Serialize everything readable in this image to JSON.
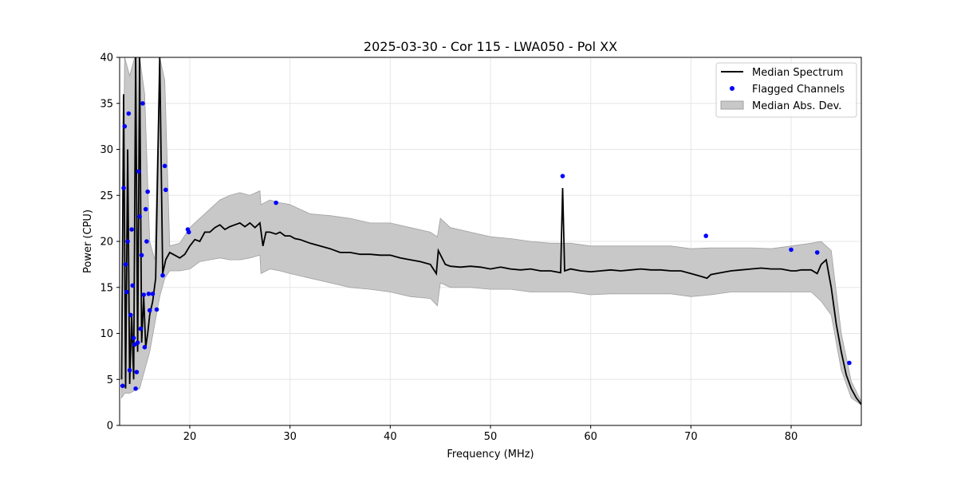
{
  "chart_data": {
    "type": "line",
    "title": "2025-03-30 - Cor 115 - LWA050 - Pol XX",
    "xlabel": "Frequency (MHz)",
    "ylabel": "Power (CPU)",
    "xlim": [
      13,
      87
    ],
    "ylim": [
      0,
      40
    ],
    "xticks": [
      20,
      30,
      40,
      50,
      60,
      70,
      80
    ],
    "yticks": [
      0,
      5,
      10,
      15,
      20,
      25,
      30,
      35,
      40
    ],
    "grid": true,
    "legend_position": "top-right",
    "colors": {
      "median": "#000000",
      "flagged": "#0000ff",
      "mad_fill": "#c8c8c8",
      "mad_edge": "#a0a0a0"
    },
    "series": [
      {
        "name": "Median Spectrum",
        "kind": "line",
        "x": [
          13.2,
          13.4,
          13.6,
          13.8,
          14.0,
          14.2,
          14.4,
          14.6,
          14.8,
          15.0,
          15.2,
          15.4,
          15.6,
          15.8,
          16.0,
          16.3,
          16.6,
          17.0,
          17.3,
          17.6,
          18.0,
          18.5,
          19.0,
          19.5,
          20.0,
          20.5,
          21.0,
          21.5,
          22.0,
          22.5,
          23.0,
          23.5,
          24.0,
          24.5,
          25.0,
          25.5,
          26.0,
          26.5,
          27.0,
          27.3,
          27.6,
          28.0,
          28.6,
          29.0,
          29.5,
          30.0,
          30.5,
          31.0,
          32.0,
          33.0,
          34.0,
          35.0,
          36.0,
          37.0,
          38.0,
          39.0,
          40.0,
          41.0,
          42.0,
          43.0,
          44.0,
          44.6,
          44.8,
          45.5,
          46.0,
          47.0,
          48.0,
          49.0,
          50.0,
          51.0,
          52.0,
          53.0,
          54.0,
          55.0,
          56.0,
          57.0,
          57.2,
          57.4,
          58.0,
          59.0,
          60.0,
          61.0,
          62.0,
          63.0,
          64.0,
          65.0,
          66.0,
          67.0,
          68.0,
          69.0,
          70.0,
          71.0,
          71.6,
          72.0,
          73.0,
          74.0,
          75.0,
          76.0,
          77.0,
          78.0,
          79.0,
          80.0,
          80.5,
          81.0,
          82.0,
          82.6,
          83.0,
          83.5,
          84.0,
          84.5,
          85.0,
          85.5,
          86.0,
          86.5,
          87.0
        ],
        "values": [
          5.0,
          36.0,
          4.0,
          30.0,
          4.5,
          12.0,
          5.0,
          40.0,
          8.0,
          40.0,
          9.0,
          14.0,
          8.5,
          10.0,
          12.0,
          13.5,
          16.0,
          40.0,
          16.5,
          18.0,
          18.8,
          18.5,
          18.2,
          18.6,
          19.5,
          20.2,
          20.0,
          21.0,
          21.0,
          21.5,
          21.8,
          21.3,
          21.6,
          21.8,
          22.0,
          21.6,
          22.0,
          21.5,
          22.0,
          19.5,
          21.0,
          21.0,
          20.8,
          21.0,
          20.6,
          20.6,
          20.3,
          20.2,
          19.8,
          19.5,
          19.2,
          18.8,
          18.8,
          18.6,
          18.6,
          18.5,
          18.5,
          18.2,
          18.0,
          17.8,
          17.5,
          16.5,
          19.0,
          17.5,
          17.3,
          17.2,
          17.3,
          17.2,
          17.0,
          17.2,
          17.0,
          16.9,
          17.0,
          16.8,
          16.8,
          16.6,
          25.8,
          16.8,
          17.0,
          16.8,
          16.7,
          16.8,
          16.9,
          16.8,
          16.9,
          17.0,
          16.9,
          16.9,
          16.8,
          16.8,
          16.5,
          16.2,
          16.0,
          16.4,
          16.6,
          16.8,
          16.9,
          17.0,
          17.1,
          17.0,
          17.0,
          16.8,
          16.8,
          16.9,
          16.9,
          16.5,
          17.5,
          18.0,
          15.0,
          11.0,
          8.0,
          5.5,
          4.0,
          3.0,
          2.3
        ]
      },
      {
        "name": "Flagged Channels",
        "kind": "scatter",
        "x": [
          13.3,
          13.4,
          13.5,
          13.6,
          13.7,
          13.8,
          13.9,
          14.0,
          14.1,
          14.2,
          14.3,
          14.4,
          14.5,
          14.6,
          14.7,
          14.8,
          14.9,
          15.0,
          15.1,
          15.2,
          15.3,
          15.4,
          15.5,
          15.6,
          15.7,
          15.8,
          15.9,
          16.0,
          16.3,
          16.7,
          17.3,
          17.5,
          17.6,
          19.8,
          19.9,
          28.6,
          57.2,
          71.5,
          80.0,
          82.6,
          85.8
        ],
        "values": [
          4.3,
          25.8,
          32.5,
          17.5,
          14.5,
          20.0,
          33.9,
          6.0,
          12.0,
          21.3,
          15.2,
          9.5,
          8.8,
          4.0,
          5.8,
          9.0,
          27.6,
          22.7,
          10.5,
          18.5,
          35.0,
          14.2,
          8.5,
          23.5,
          20.0,
          25.4,
          14.3,
          12.5,
          14.3,
          12.6,
          16.3,
          28.2,
          25.6,
          21.3,
          21.0,
          24.2,
          27.1,
          20.6,
          19.1,
          18.8,
          6.8
        ]
      },
      {
        "name": "Median Abs. Dev.",
        "kind": "band",
        "x": [
          13.2,
          13.5,
          14.0,
          14.5,
          15.0,
          15.5,
          16.0,
          16.5,
          17.0,
          17.5,
          18.0,
          19.0,
          20.0,
          21.0,
          22.0,
          23.0,
          24.0,
          25.0,
          26.0,
          27.0,
          27.1,
          28.0,
          29.0,
          30.0,
          32.0,
          34.0,
          36.0,
          38.0,
          40.0,
          42.0,
          44.0,
          44.7,
          45.0,
          46.0,
          48.0,
          50.0,
          52.0,
          54.0,
          56.0,
          58.0,
          60.0,
          62.0,
          64.0,
          66.0,
          68.0,
          70.0,
          72.0,
          74.0,
          76.0,
          78.0,
          80.0,
          82.0,
          83.0,
          84.0,
          85.0,
          86.0,
          87.0
        ],
        "lower": [
          3.0,
          3.5,
          3.5,
          3.8,
          4.0,
          6.0,
          8.0,
          11.0,
          14.0,
          16.0,
          16.8,
          16.8,
          17.0,
          17.8,
          18.0,
          18.2,
          18.0,
          18.0,
          18.2,
          18.5,
          16.5,
          17.0,
          16.8,
          16.5,
          16.0,
          15.5,
          15.0,
          14.8,
          14.5,
          14.0,
          13.8,
          13.0,
          15.5,
          15.0,
          15.0,
          14.8,
          14.8,
          14.5,
          14.5,
          14.5,
          14.2,
          14.3,
          14.3,
          14.3,
          14.3,
          14.0,
          14.2,
          14.5,
          14.5,
          14.5,
          14.5,
          14.5,
          13.5,
          12.0,
          6.0,
          3.0,
          2.2
        ],
        "upper": [
          12.0,
          40.0,
          38.0,
          40.0,
          40.0,
          36.0,
          20.0,
          18.0,
          40.0,
          37.5,
          19.5,
          19.8,
          21.5,
          22.5,
          23.5,
          24.5,
          25.0,
          25.3,
          25.0,
          25.5,
          24.0,
          24.5,
          24.2,
          24.0,
          23.0,
          22.8,
          22.5,
          22.0,
          22.0,
          21.5,
          21.0,
          20.5,
          22.5,
          21.5,
          21.0,
          20.5,
          20.3,
          20.0,
          19.8,
          19.8,
          19.5,
          19.5,
          19.5,
          19.5,
          19.5,
          19.2,
          19.3,
          19.3,
          19.3,
          19.2,
          19.5,
          19.8,
          20.0,
          19.0,
          10.0,
          4.8,
          2.6
        ]
      }
    ]
  }
}
